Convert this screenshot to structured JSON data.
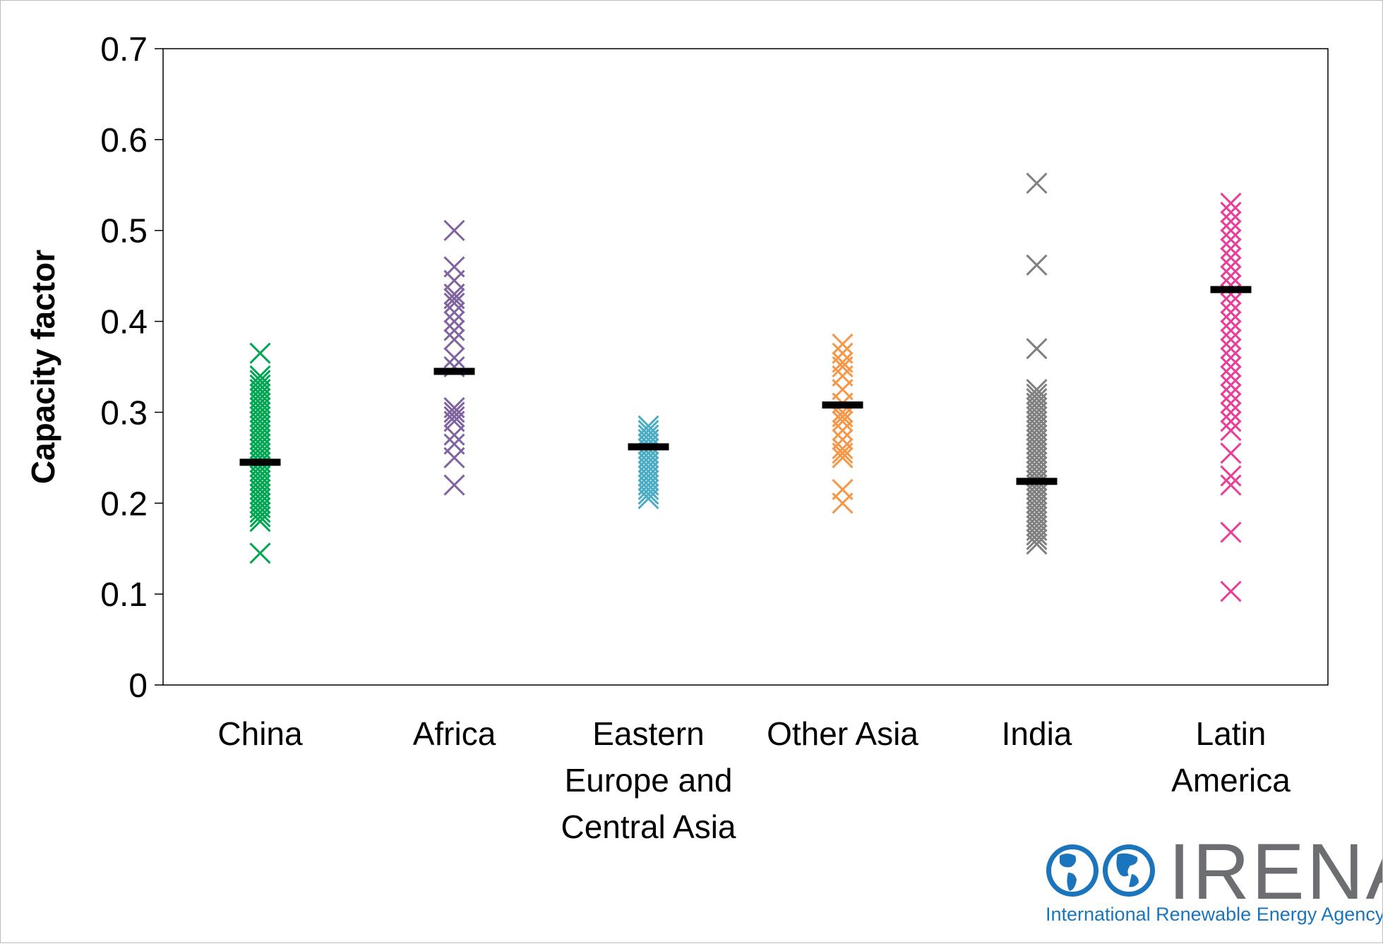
{
  "chart_data": {
    "type": "scatter",
    "title": "",
    "ylabel": "Capacity factor",
    "ylim": [
      0,
      0.7
    ],
    "yticks": [
      "0",
      "0.1",
      "0.2",
      "0.3",
      "0.4",
      "0.5",
      "0.6",
      "0.7"
    ],
    "grid": false,
    "marker": "x",
    "categories": [
      [
        "China"
      ],
      [
        "Africa"
      ],
      [
        "Eastern",
        "Europe and",
        "Central Asia"
      ],
      [
        "Other Asia"
      ],
      [
        "India"
      ],
      [
        "Latin",
        "America"
      ]
    ],
    "series": [
      {
        "category": "China",
        "color": "#00a651",
        "average": 0.245,
        "values": [
          0.365,
          0.34,
          0.335,
          0.33,
          0.325,
          0.32,
          0.315,
          0.31,
          0.305,
          0.3,
          0.295,
          0.29,
          0.285,
          0.28,
          0.275,
          0.27,
          0.265,
          0.26,
          0.255,
          0.25,
          0.245,
          0.24,
          0.235,
          0.23,
          0.225,
          0.22,
          0.215,
          0.21,
          0.205,
          0.2,
          0.195,
          0.19,
          0.185,
          0.18,
          0.145
        ]
      },
      {
        "category": "Africa",
        "color": "#8064a2",
        "average": 0.345,
        "values": [
          0.5,
          0.46,
          0.445,
          0.43,
          0.425,
          0.42,
          0.41,
          0.4,
          0.39,
          0.38,
          0.36,
          0.35,
          0.305,
          0.3,
          0.295,
          0.29,
          0.275,
          0.265,
          0.25,
          0.22
        ]
      },
      {
        "category": "Eastern Europe and Central Asia",
        "color": "#4bacc6",
        "average": 0.262,
        "values": [
          0.285,
          0.28,
          0.275,
          0.27,
          0.265,
          0.26,
          0.255,
          0.25,
          0.245,
          0.24,
          0.235,
          0.23,
          0.225,
          0.22,
          0.215,
          0.21,
          0.205
        ]
      },
      {
        "category": "Other Asia",
        "color": "#f79646",
        "average": 0.308,
        "values": [
          0.375,
          0.365,
          0.355,
          0.35,
          0.34,
          0.325,
          0.31,
          0.3,
          0.295,
          0.29,
          0.28,
          0.27,
          0.26,
          0.255,
          0.25,
          0.215,
          0.2
        ]
      },
      {
        "category": "India",
        "color": "#808080",
        "average": 0.224,
        "values": [
          0.552,
          0.462,
          0.37,
          0.325,
          0.32,
          0.315,
          0.31,
          0.305,
          0.3,
          0.295,
          0.29,
          0.285,
          0.28,
          0.275,
          0.27,
          0.265,
          0.26,
          0.255,
          0.25,
          0.245,
          0.24,
          0.235,
          0.23,
          0.225,
          0.22,
          0.215,
          0.21,
          0.205,
          0.2,
          0.195,
          0.19,
          0.185,
          0.18,
          0.175,
          0.17,
          0.165,
          0.16,
          0.155
        ]
      },
      {
        "category": "Latin America",
        "color": "#ec3c9a",
        "average": 0.435,
        "values": [
          0.53,
          0.52,
          0.51,
          0.5,
          0.49,
          0.48,
          0.47,
          0.46,
          0.45,
          0.44,
          0.43,
          0.42,
          0.41,
          0.4,
          0.39,
          0.38,
          0.37,
          0.36,
          0.35,
          0.34,
          0.33,
          0.32,
          0.31,
          0.3,
          0.29,
          0.28,
          0.255,
          0.23,
          0.22,
          0.168,
          0.103
        ]
      }
    ],
    "average_marker_color": "#000000"
  },
  "logo": {
    "wordmark": "IRENA",
    "subtitle": "International Renewable Energy Agency",
    "color_blue": "#1b75bc",
    "color_grey": "#6d6e71"
  }
}
